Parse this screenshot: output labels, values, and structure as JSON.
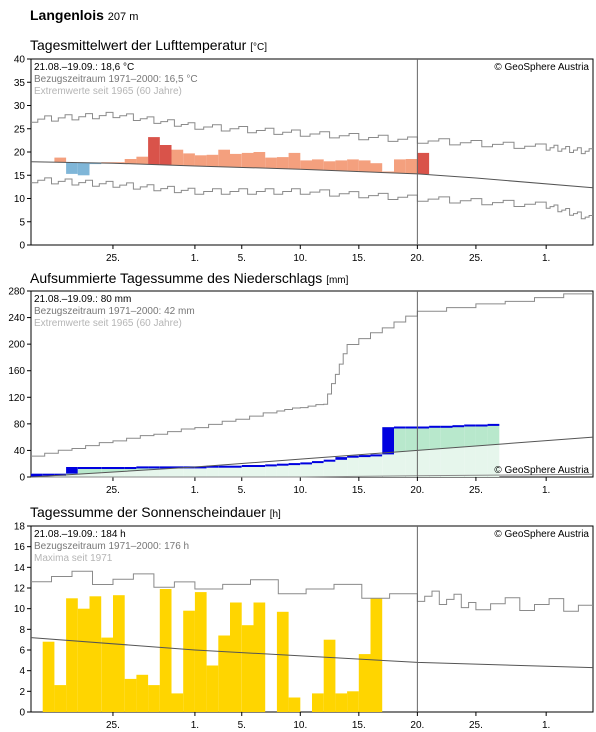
{
  "station": {
    "name": "Langenlois",
    "elevation": "207 m"
  },
  "x_axis_ticks": [
    "25.",
    "1.",
    "5.",
    "10.",
    "15.",
    "20.",
    "25.",
    "1."
  ],
  "copyright": "© GeoSphere Austria",
  "colors": {
    "warm": "#f4a07e",
    "warm_strong": "#d9534a",
    "cold": "#7fb6d8",
    "cold_strong": "#3d87c0",
    "precip": "#0000e0",
    "precip_band": "#b8e8cc",
    "sun": "#ffd500",
    "ref_line": "#555555",
    "extreme_line": "#8a8a8a"
  },
  "charts": [
    {
      "title": "Tagesmittelwert der Lufttemperatur",
      "unit": "[°C]",
      "info_current": "21.08.–19.09.: 18,6 °C",
      "info_reference": "Bezugszeitraum 1971–2000: 16,5 °C",
      "info_extreme": "Extremwerte seit 1965 (60 Jahre)",
      "y_ticks": [
        "40",
        "35",
        "30",
        "25",
        "20",
        "15",
        "10",
        "5",
        "0"
      ]
    },
    {
      "title": "Aufsummierte Tagessumme des Niederschlags",
      "unit": "[mm]",
      "info_current": "21.08.–19.09.: 80 mm",
      "info_reference": "Bezugszeitraum 1971–2000: 42 mm",
      "info_extreme": "Extremwerte seit 1965 (60 Jahre)",
      "y_ticks": [
        "280",
        "240",
        "200",
        "160",
        "120",
        "80",
        "40",
        "0"
      ]
    },
    {
      "title": "Tagessumme der Sonnenscheindauer",
      "unit": "[h]",
      "info_current": "21.08.–19.09.: 184 h",
      "info_reference": "Bezugszeitraum 1971–2000: 176 h",
      "info_extreme": "Maxima seit 1971",
      "y_ticks": [
        "18",
        "16",
        "14",
        "12",
        "10",
        "8",
        "6",
        "4",
        "2",
        "0"
      ]
    }
  ],
  "chart_data": [
    {
      "type": "bar",
      "title": "Tagesmittelwert der Lufttemperatur",
      "ylabel": "°C",
      "ylim": [
        0,
        40
      ],
      "x_start": "2024-08-18",
      "x_end": "2024-10-05",
      "observed": {
        "start": "2024-08-21",
        "values": [
          18.8,
          15.3,
          15.0,
          17.4,
          17.8,
          17.8,
          18.5,
          19.0,
          23.2,
          21.5,
          20.5,
          19.7,
          19.3,
          19.4,
          20.5,
          19.6,
          19.8,
          20.0,
          18.8,
          18.9,
          19.8,
          18.2,
          18.4,
          18.0,
          18.2,
          18.4,
          18.2,
          17.6,
          15.8,
          18.4,
          18.5,
          19.8
        ]
      },
      "climatology_mean": {
        "x": [
          "2024-08-18",
          "2024-08-25",
          "2024-09-01",
          "2024-09-10",
          "2024-09-20",
          "2024-09-25",
          "2024-10-05"
        ],
        "values": [
          17.9,
          17.6,
          17.0,
          16.3,
          15.3,
          14.4,
          12.3
        ]
      },
      "extreme_max": {
        "x": [
          "2024-08-18",
          "2024-08-25",
          "2024-09-01",
          "2024-09-10",
          "2024-09-20",
          "2024-10-01",
          "2024-10-05"
        ],
        "values": [
          27.0,
          28.0,
          25.5,
          24.0,
          22.5,
          21.0,
          20.0
        ]
      },
      "extreme_min": {
        "x": [
          "2024-08-18",
          "2024-08-25",
          "2024-09-01",
          "2024-09-10",
          "2024-09-20",
          "2024-10-01",
          "2024-10-05"
        ],
        "values": [
          14.0,
          13.0,
          11.5,
          11.5,
          10.0,
          8.5,
          5.5
        ]
      },
      "current_day": "2024-09-20"
    },
    {
      "type": "area",
      "title": "Aufsummierte Tagessumme des Niederschlags",
      "ylabel": "mm",
      "ylim": [
        0,
        280
      ],
      "x_start": "2024-08-18",
      "x_end": "2024-10-05",
      "observed_cumulative": {
        "start": "2024-08-18",
        "values": [
          5,
          5,
          5,
          15,
          15,
          15,
          15,
          15,
          15,
          16,
          16,
          16,
          16,
          16,
          16,
          17,
          17,
          17,
          18,
          18,
          19,
          20,
          21,
          22,
          24,
          26,
          30,
          32,
          33,
          34,
          75,
          76,
          76,
          76,
          77,
          77,
          78,
          79,
          79,
          80
        ]
      },
      "climatology_cumulative": {
        "x": [
          "2024-08-18",
          "2024-09-01",
          "2024-09-10",
          "2024-09-20",
          "2024-10-05"
        ],
        "values": [
          0,
          15,
          27,
          40,
          60
        ]
      },
      "extreme_max_cumulative": {
        "x": [
          "2024-08-18",
          "2024-08-25",
          "2024-09-01",
          "2024-09-08",
          "2024-09-12",
          "2024-09-14",
          "2024-09-20",
          "2024-10-05"
        ],
        "values": [
          32,
          55,
          75,
          100,
          110,
          200,
          250,
          280
        ]
      },
      "extreme_min_cumulative": {
        "x": [
          "2024-08-18",
          "2024-09-10",
          "2024-09-20",
          "2024-10-05"
        ],
        "values": [
          0,
          0,
          2,
          4
        ]
      },
      "current_day": "2024-09-20"
    },
    {
      "type": "bar",
      "title": "Tagessumme der Sonnenscheindauer",
      "ylabel": "h",
      "ylim": [
        0,
        18
      ],
      "x_start": "2024-08-18",
      "x_end": "2024-10-05",
      "observed": {
        "start": "2024-08-19",
        "values": [
          6.8,
          2.6,
          11.0,
          10.0,
          11.2,
          7.2,
          11.3,
          3.2,
          3.6,
          2.6,
          11.9,
          1.8,
          9.8,
          11.6,
          4.5,
          7.4,
          10.6,
          8.4,
          10.6,
          0.0,
          9.7,
          1.4,
          0.0,
          1.8,
          7.0,
          1.8,
          2.0,
          5.6,
          11.0
        ]
      },
      "climatology_mean": {
        "x": [
          "2024-08-18",
          "2024-09-01",
          "2024-09-20",
          "2024-10-05"
        ],
        "values": [
          7.2,
          6.0,
          4.8,
          4.3
        ]
      },
      "maxima": {
        "x": [
          "2024-08-18",
          "2024-09-01",
          "2024-09-20",
          "2024-09-25",
          "2024-10-05"
        ],
        "values": [
          13.2,
          12.5,
          11.3,
          10.5,
          10.3
        ]
      },
      "current_day": "2024-09-20"
    }
  ]
}
